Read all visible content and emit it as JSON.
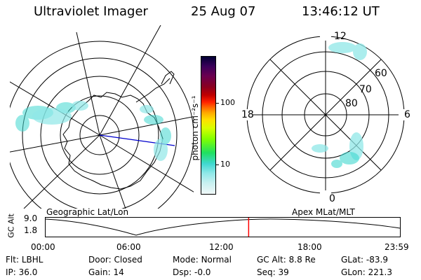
{
  "header": {
    "instrument": "Ultraviolet Imager",
    "date": "25 Aug 07",
    "time": "13:46:12 UT"
  },
  "geo_map": {
    "label": "Geographic Lat/Lon"
  },
  "mag_map": {
    "label": "Apex MLat/MLT",
    "mlt_labels": {
      "top": "12",
      "bottom": "0",
      "left": "18",
      "right": "6"
    },
    "lat_labels": [
      "60",
      "70",
      "80"
    ]
  },
  "colorbar": {
    "unit_label": "photon cm⁻²s⁻¹",
    "ticks": [
      "100",
      "10"
    ],
    "colors": [
      "#000033",
      "#3a005a",
      "#6a0050",
      "#8a0020",
      "#c00000",
      "#ff2000",
      "#ff6a00",
      "#ffaa00",
      "#ffe000",
      "#d8ff00",
      "#80ff00",
      "#20e060",
      "#40d8d0",
      "#90e8e8",
      "#c8f0f0",
      "#f0f8f8"
    ]
  },
  "timeline": {
    "y_axis_label": "GC Alt",
    "y_ticks": [
      "9.0",
      "1.8"
    ],
    "x_ticks": [
      "00:00",
      "06:00",
      "12:00",
      "18:00",
      "23:59"
    ],
    "current_time_fraction": 0.573
  },
  "status": {
    "filter": {
      "key": "Flt:",
      "value": "LBHL"
    },
    "ip": {
      "key": "IP:",
      "value": "36.0"
    },
    "door": {
      "key": "Door:",
      "value": "Closed"
    },
    "gain": {
      "key": "Gain:",
      "value": "14"
    },
    "mode": {
      "key": "Mode:",
      "value": "Normal"
    },
    "dsp": {
      "key": "Dsp:",
      "value": "-0.0"
    },
    "gc_alt": {
      "key": "GC Alt:",
      "value": "8.8 Re"
    },
    "seq": {
      "key": "Seq:",
      "value": "39"
    },
    "glat": {
      "key": "GLat:",
      "value": "-83.9"
    },
    "glon": {
      "key": "GLon:",
      "value": "221.3"
    }
  }
}
